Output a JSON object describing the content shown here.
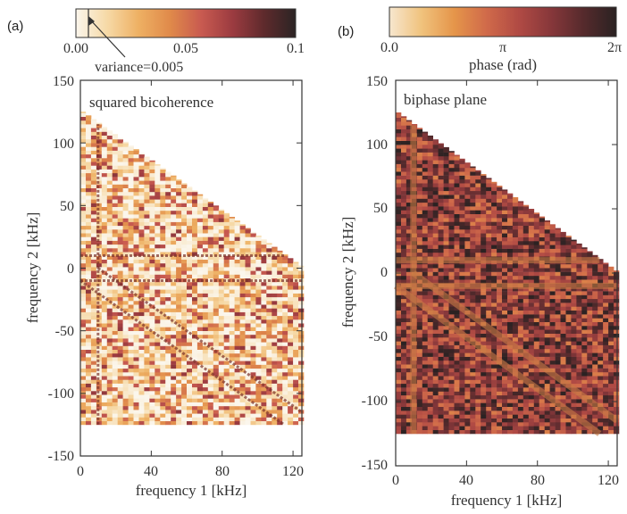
{
  "figure": {
    "panels": [
      {
        "label": "(a)",
        "title": "squared bicoherence",
        "colorbar": {
          "ticks": [
            "0.00",
            "0.05",
            "0.1"
          ],
          "range": [
            0,
            0.1
          ],
          "label": "",
          "annotation": "variance=0.005",
          "annotation_value": 0.005,
          "colors": [
            "#fbf6ec",
            "#f6d9a6",
            "#eeb063",
            "#e08a4a",
            "#c85a50",
            "#9b3b40",
            "#5e2a2c",
            "#2b2424"
          ]
        },
        "xlabel": "frequency 1 [kHz]",
        "ylabel": "frequency 2 [kHz]",
        "xticks": [
          "0",
          "40",
          "80",
          "120"
        ],
        "yticks": [
          "150",
          "100",
          "50",
          "0",
          "-50",
          "-100",
          "-150"
        ]
      },
      {
        "label": "(b)",
        "title": "biphase plane",
        "colorbar": {
          "ticks": [
            "0.0",
            "π",
            "2π"
          ],
          "range": [
            0,
            6.2832
          ],
          "label": "phase (rad)",
          "colors": [
            "#f7e7cf",
            "#f0c27c",
            "#e5954a",
            "#d06a4a",
            "#b04a44",
            "#86373a",
            "#552a2c",
            "#2a2222"
          ]
        },
        "xlabel": "frequency 1 [kHz]",
        "ylabel": "frequency 2 [kHz]",
        "xticks": [
          "0",
          "40",
          "80",
          "120"
        ],
        "yticks": [
          "150",
          "100",
          "50",
          "0",
          "-50",
          "-100",
          "-150"
        ]
      }
    ]
  },
  "chart_data": [
    {
      "type": "heatmap",
      "title": "squared bicoherence",
      "xlabel": "frequency 1 [kHz]",
      "ylabel": "frequency 2 [kHz]",
      "xlim": [
        0,
        125
      ],
      "ylim": [
        -150,
        150
      ],
      "colorbar_range": [
        0,
        0.1
      ],
      "domain": "triangle f1 in [0,125], f2 in [-125,125-f1]",
      "features": [
        {
          "kind": "vertical line",
          "f1": 10
        },
        {
          "kind": "horizontal line",
          "f2": 10
        },
        {
          "kind": "horizontal line",
          "f2": -10
        },
        {
          "kind": "diagonal line",
          "f1_plus_f2": 10
        },
        {
          "kind": "diagonal line",
          "f1_plus_f2": -10
        }
      ]
    },
    {
      "type": "heatmap",
      "title": "biphase plane",
      "xlabel": "frequency 1 [kHz]",
      "ylabel": "frequency 2 [kHz]",
      "xlim": [
        0,
        125
      ],
      "ylim": [
        -150,
        150
      ],
      "colorbar_range": [
        0,
        6.2832
      ],
      "domain": "triangle f1 in [0,125], f2 in [-125,125-f1]",
      "features": [
        {
          "kind": "vertical line",
          "f1": 10
        },
        {
          "kind": "horizontal line",
          "f2": 10
        },
        {
          "kind": "horizontal line",
          "f2": -10
        },
        {
          "kind": "diagonal line",
          "f1_plus_f2": 10
        },
        {
          "kind": "diagonal line",
          "f1_plus_f2": -10
        }
      ]
    }
  ]
}
